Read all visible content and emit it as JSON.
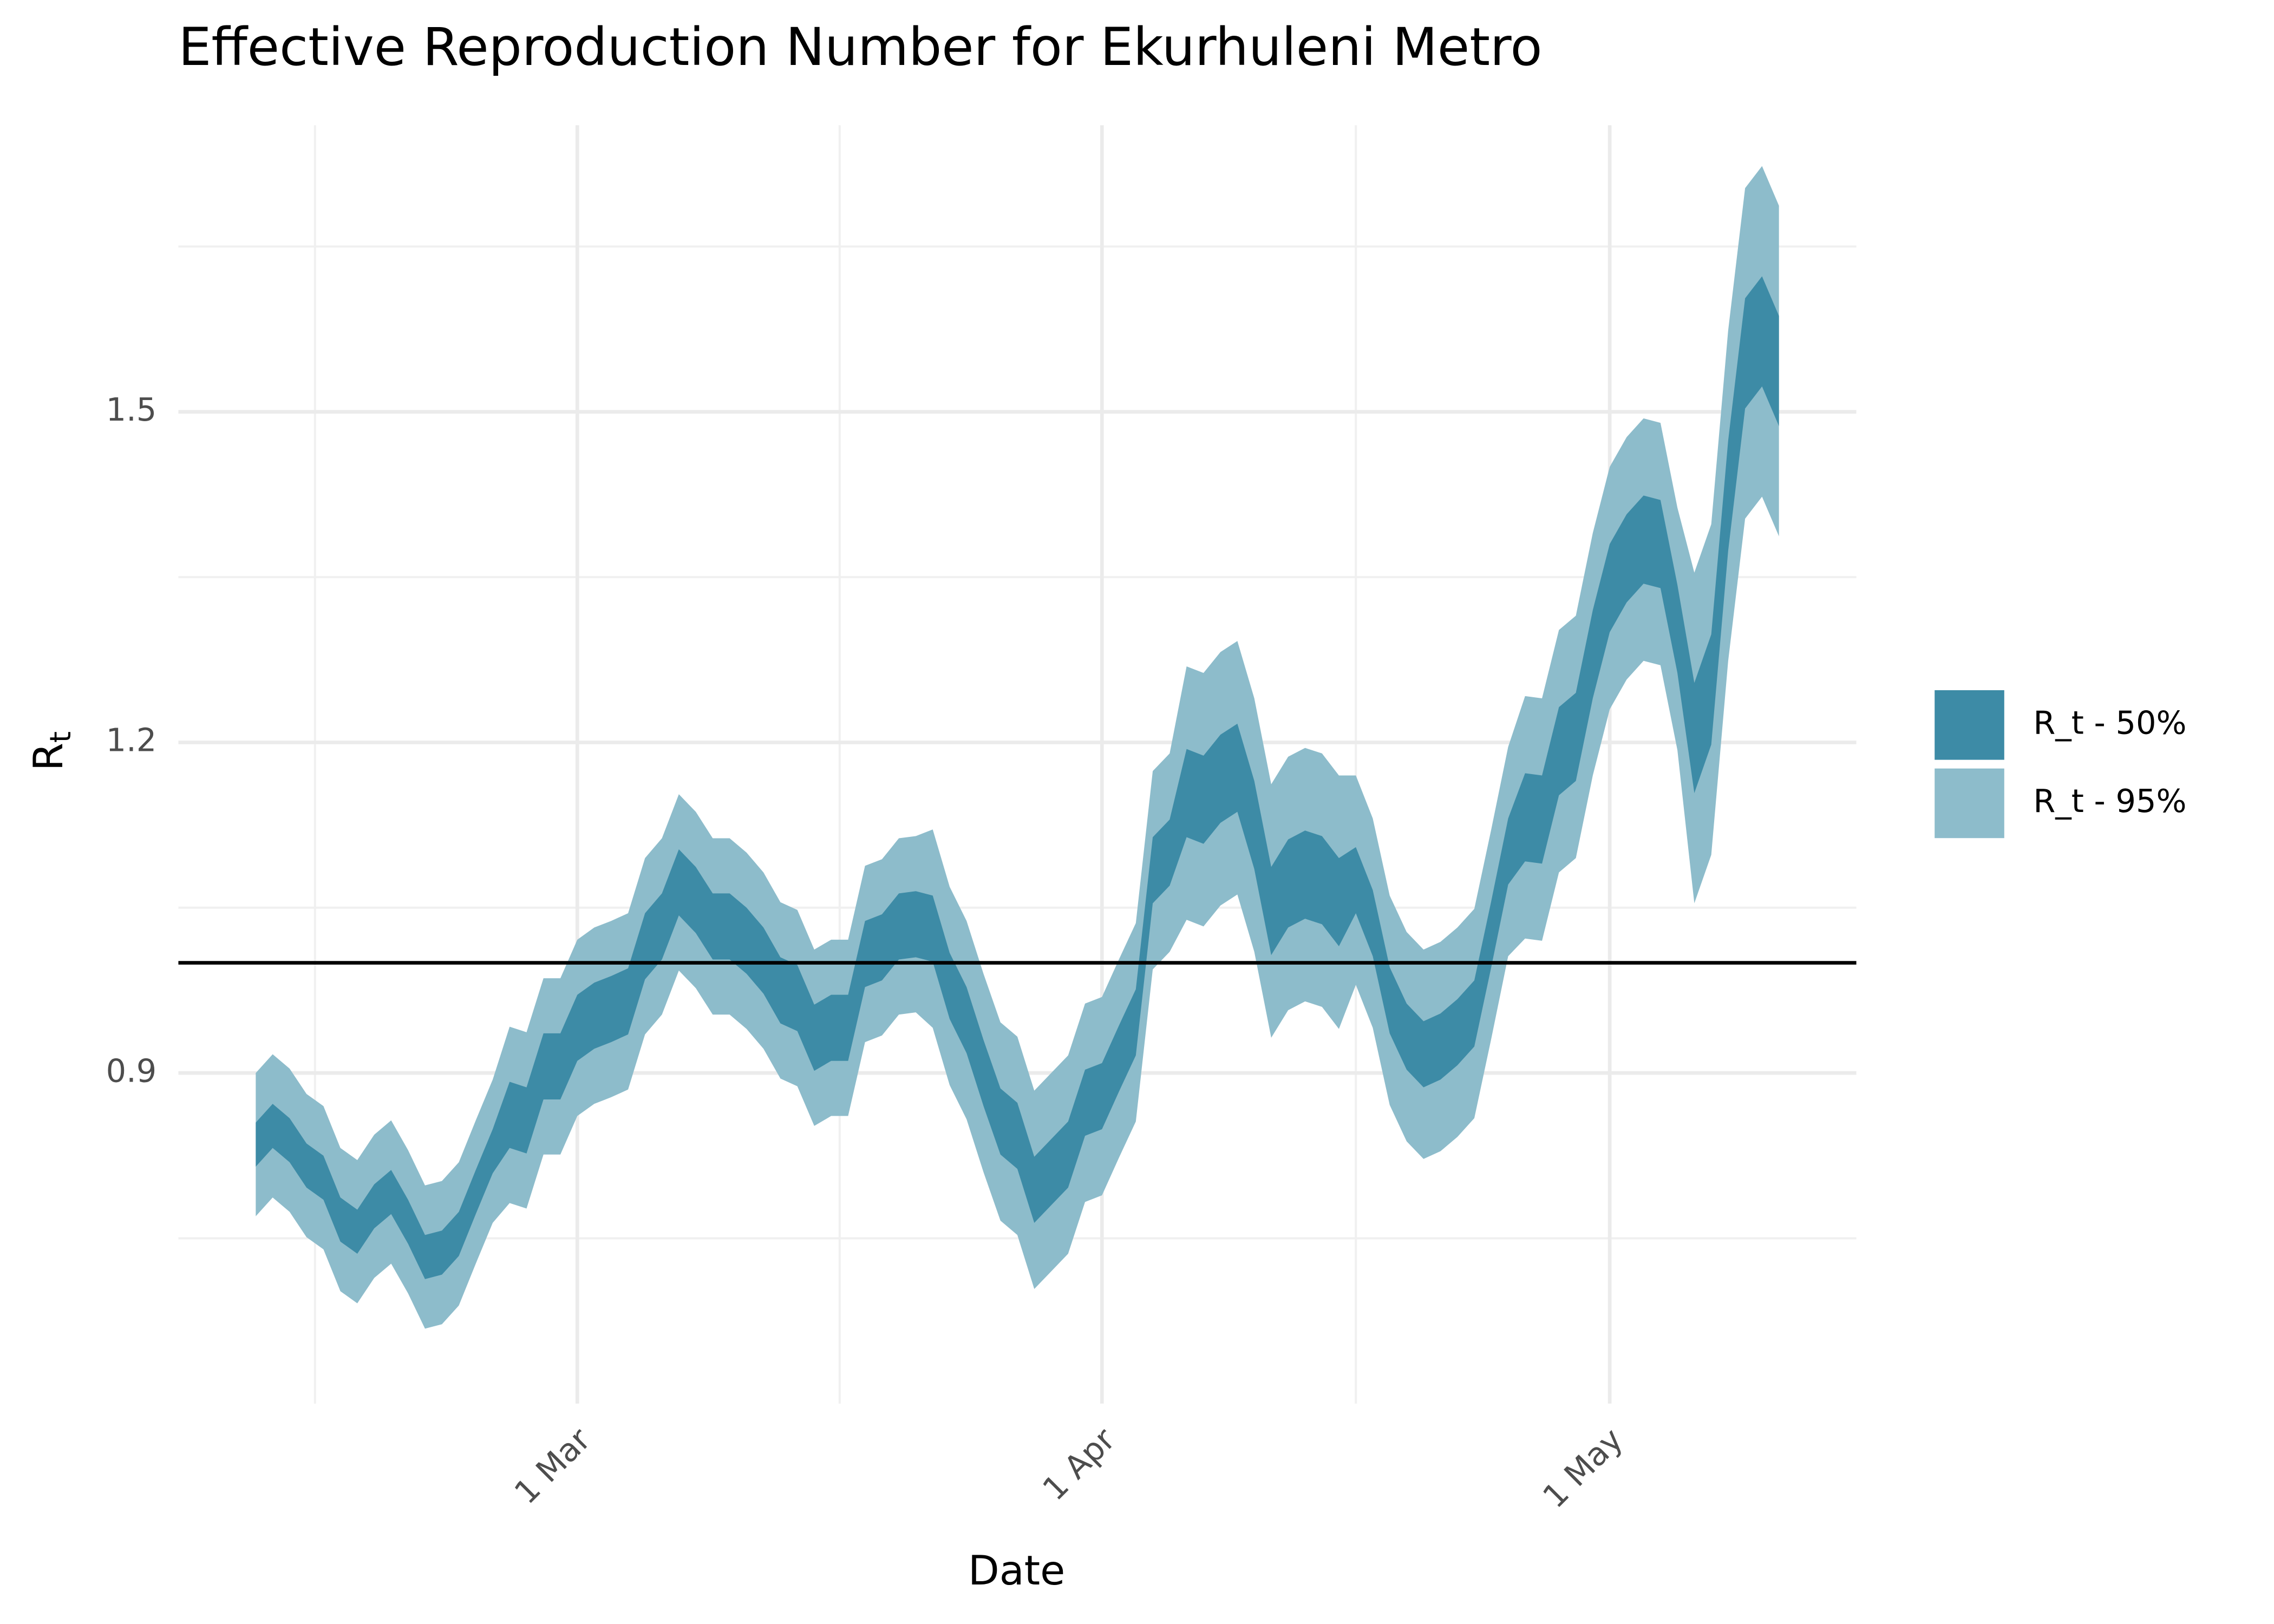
{
  "chart_data": {
    "type": "ribbon",
    "title": "Effective Reproduction Number for Ekurhuleni Metro",
    "x_label": "Date",
    "y_label": "R",
    "y_label_subscript": "t",
    "x": [
      "10 Feb",
      "11 Feb",
      "12 Feb",
      "13 Feb",
      "14 Feb",
      "15 Feb",
      "16 Feb",
      "17 Feb",
      "18 Feb",
      "19 Feb",
      "20 Feb",
      "21 Feb",
      "22 Feb",
      "23 Feb",
      "24 Feb",
      "25 Feb",
      "26 Feb",
      "27 Feb",
      "28 Feb",
      "1 Mar",
      "2 Mar",
      "3 Mar",
      "4 Mar",
      "5 Mar",
      "6 Mar",
      "7 Mar",
      "8 Mar",
      "9 Mar",
      "10 Mar",
      "11 Mar",
      "12 Mar",
      "13 Mar",
      "14 Mar",
      "15 Mar",
      "16 Mar",
      "17 Mar",
      "18 Mar",
      "19 Mar",
      "20 Mar",
      "21 Mar",
      "22 Mar",
      "23 Mar",
      "24 Mar",
      "25 Mar",
      "26 Mar",
      "27 Mar",
      "28 Mar",
      "29 Mar",
      "30 Mar",
      "31 Mar",
      "1 Apr",
      "2 Apr",
      "3 Apr",
      "4 Apr",
      "5 Apr",
      "6 Apr",
      "7 Apr",
      "8 Apr",
      "9 Apr",
      "10 Apr",
      "11 Apr",
      "12 Apr",
      "13 Apr",
      "14 Apr",
      "15 Apr",
      "16 Apr",
      "17 Apr",
      "18 Apr",
      "19 Apr",
      "20 Apr",
      "21 Apr",
      "22 Apr",
      "23 Apr",
      "24 Apr",
      "25 Apr",
      "26 Apr",
      "27 Apr",
      "28 Apr",
      "29 Apr",
      "30 Apr",
      "1 May",
      "2 May",
      "3 May",
      "4 May",
      "5 May",
      "6 May",
      "7 May",
      "8 May",
      "9 May",
      "10 May",
      "11 May"
    ],
    "series": [
      {
        "name": "R_t - 50%",
        "color": "#3d8ba6",
        "lower": [
          0.815,
          0.832,
          0.819,
          0.796,
          0.785,
          0.747,
          0.736,
          0.759,
          0.772,
          0.745,
          0.713,
          0.717,
          0.734,
          0.772,
          0.809,
          0.832,
          0.827,
          0.876,
          0.876,
          0.911,
          0.922,
          0.928,
          0.935,
          0.985,
          1.003,
          1.043,
          1.027,
          1.003,
          1.003,
          0.99,
          0.972,
          0.945,
          0.938,
          0.902,
          0.911,
          0.911,
          0.978,
          0.984,
          1.003,
          1.005,
          1.001,
          0.949,
          0.918,
          0.87,
          0.826,
          0.813,
          0.764,
          0.78,
          0.796,
          0.843,
          0.849,
          0.883,
          0.916,
          1.054,
          1.07,
          1.114,
          1.108,
          1.127,
          1.137,
          1.085,
          1.007,
          1.032,
          1.04,
          1.035,
          1.015,
          1.045,
          1.006,
          0.936,
          0.903,
          0.887,
          0.894,
          0.907,
          0.924,
          0.996,
          1.071,
          1.092,
          1.09,
          1.152,
          1.165,
          1.24,
          1.3,
          1.327,
          1.344,
          1.34,
          1.263,
          1.154,
          1.198,
          1.374,
          1.503,
          1.523,
          1.487
        ],
        "upper": [
          0.855,
          0.872,
          0.859,
          0.836,
          0.825,
          0.787,
          0.776,
          0.799,
          0.812,
          0.785,
          0.753,
          0.757,
          0.774,
          0.812,
          0.849,
          0.892,
          0.887,
          0.936,
          0.936,
          0.971,
          0.982,
          0.988,
          0.995,
          1.045,
          1.063,
          1.103,
          1.087,
          1.063,
          1.063,
          1.05,
          1.032,
          1.005,
          0.998,
          0.962,
          0.971,
          0.971,
          1.038,
          1.044,
          1.063,
          1.065,
          1.061,
          1.009,
          0.978,
          0.93,
          0.886,
          0.873,
          0.824,
          0.84,
          0.856,
          0.903,
          0.909,
          0.943,
          0.976,
          1.114,
          1.13,
          1.194,
          1.188,
          1.207,
          1.217,
          1.165,
          1.087,
          1.112,
          1.12,
          1.115,
          1.095,
          1.105,
          1.066,
          0.996,
          0.963,
          0.947,
          0.954,
          0.967,
          0.984,
          1.056,
          1.131,
          1.172,
          1.17,
          1.232,
          1.245,
          1.32,
          1.38,
          1.407,
          1.424,
          1.42,
          1.343,
          1.254,
          1.298,
          1.474,
          1.603,
          1.623,
          1.587
        ]
      },
      {
        "name": "R_t - 95%",
        "color": "#8dbccb",
        "lower": [
          0.77,
          0.787,
          0.774,
          0.751,
          0.74,
          0.702,
          0.691,
          0.714,
          0.727,
          0.7,
          0.668,
          0.672,
          0.689,
          0.727,
          0.764,
          0.782,
          0.777,
          0.826,
          0.826,
          0.861,
          0.872,
          0.878,
          0.885,
          0.935,
          0.953,
          0.993,
          0.977,
          0.953,
          0.953,
          0.94,
          0.922,
          0.895,
          0.888,
          0.852,
          0.861,
          0.861,
          0.928,
          0.934,
          0.953,
          0.955,
          0.941,
          0.889,
          0.858,
          0.81,
          0.766,
          0.753,
          0.704,
          0.72,
          0.736,
          0.783,
          0.789,
          0.823,
          0.856,
          0.994,
          1.01,
          1.039,
          1.033,
          1.052,
          1.062,
          1.01,
          0.932,
          0.957,
          0.965,
          0.96,
          0.94,
          0.98,
          0.941,
          0.871,
          0.838,
          0.822,
          0.829,
          0.842,
          0.859,
          0.931,
          1.006,
          1.022,
          1.02,
          1.082,
          1.095,
          1.17,
          1.23,
          1.257,
          1.274,
          1.27,
          1.193,
          1.054,
          1.098,
          1.274,
          1.403,
          1.423,
          1.387
        ],
        "upper": [
          0.9,
          0.917,
          0.904,
          0.881,
          0.87,
          0.832,
          0.821,
          0.844,
          0.857,
          0.83,
          0.798,
          0.802,
          0.819,
          0.857,
          0.894,
          0.942,
          0.937,
          0.986,
          0.986,
          1.021,
          1.032,
          1.038,
          1.045,
          1.095,
          1.113,
          1.153,
          1.137,
          1.113,
          1.113,
          1.1,
          1.082,
          1.055,
          1.048,
          1.012,
          1.021,
          1.021,
          1.088,
          1.094,
          1.113,
          1.115,
          1.121,
          1.069,
          1.038,
          0.99,
          0.946,
          0.933,
          0.884,
          0.9,
          0.916,
          0.963,
          0.969,
          1.003,
          1.036,
          1.174,
          1.19,
          1.269,
          1.263,
          1.282,
          1.292,
          1.24,
          1.162,
          1.187,
          1.195,
          1.19,
          1.17,
          1.17,
          1.131,
          1.061,
          1.028,
          1.012,
          1.019,
          1.032,
          1.049,
          1.121,
          1.196,
          1.242,
          1.24,
          1.302,
          1.315,
          1.39,
          1.45,
          1.477,
          1.494,
          1.49,
          1.413,
          1.354,
          1.398,
          1.574,
          1.703,
          1.723,
          1.687
        ]
      }
    ],
    "reference_line": 1,
    "xlim": [
      "5 Feb",
      "16 May"
    ],
    "xticks": [
      "1 Mar",
      "1 Apr",
      "1 May"
    ],
    "ylim": [
      0.6,
      1.76
    ],
    "yticks": [
      0.9,
      1.2,
      1.5
    ],
    "grid": true,
    "legend": "right"
  }
}
